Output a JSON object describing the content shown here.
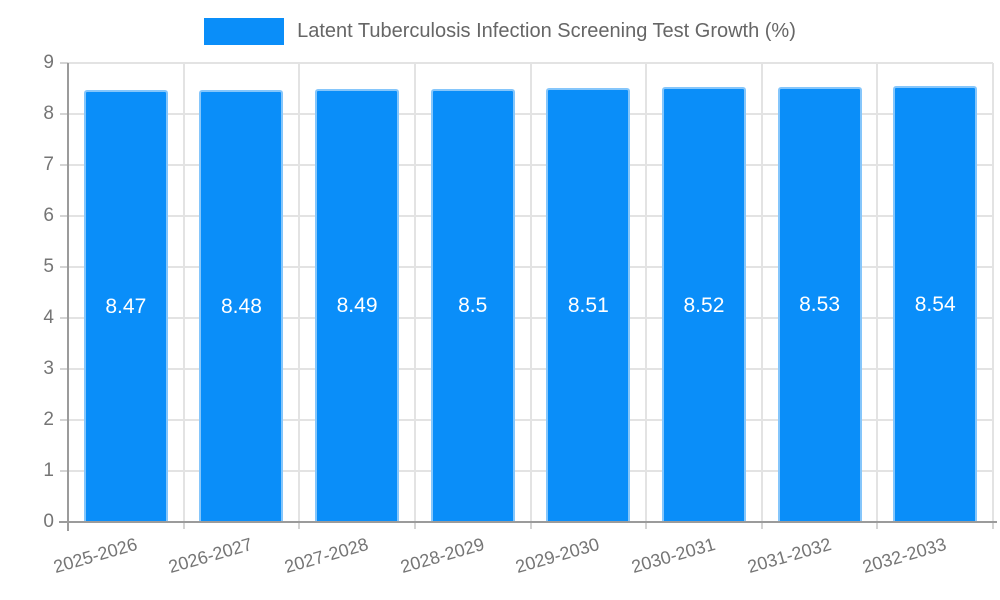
{
  "chart_data": {
    "type": "bar",
    "title": "Latent Tuberculosis Infection Screening Test Growth (%)",
    "categories": [
      "2025-2026",
      "2026-2027",
      "2027-2028",
      "2028-2029",
      "2029-2030",
      "2030-2031",
      "2031-2032",
      "2032-2033"
    ],
    "values": [
      8.47,
      8.48,
      8.49,
      8.5,
      8.51,
      8.52,
      8.53,
      8.54
    ],
    "value_labels": [
      "8.47",
      "8.48",
      "8.49",
      "8.5",
      "8.51",
      "8.52",
      "8.53",
      "8.54"
    ],
    "xlabel": "",
    "ylabel": "",
    "ylim": [
      0,
      9
    ],
    "yticks": [
      0,
      1,
      2,
      3,
      4,
      5,
      6,
      7,
      8,
      9
    ],
    "grid": true,
    "legend_position": "top",
    "colors": {
      "bar_fill": "#0a8ef9",
      "bar_border": "#85c6fb",
      "grid_line": "#e3e3e3",
      "tick_mark": "#d4d4d4",
      "axis_line": "#9b9b9b",
      "tick_text": "#757575",
      "legend_text": "#666666",
      "value_text": "#ffffff",
      "background": "#ffffff"
    }
  }
}
